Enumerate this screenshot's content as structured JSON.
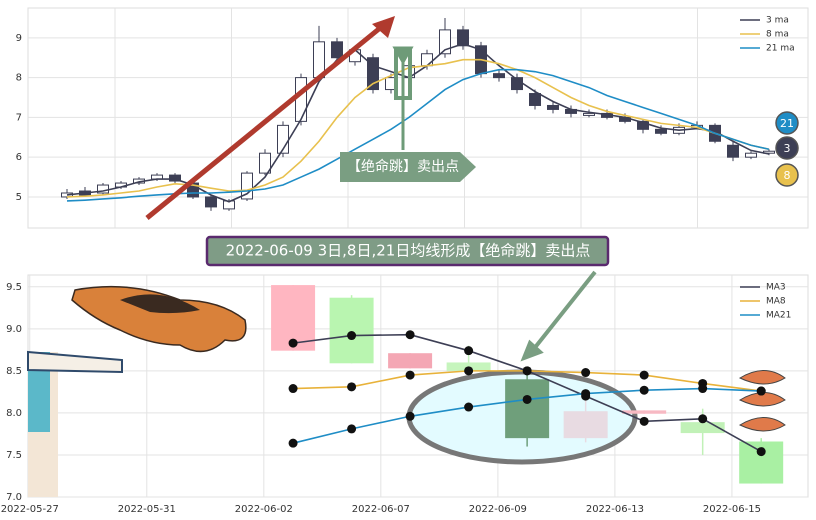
{
  "chart_data": [
    {
      "type": "candlestick",
      "open": [
        5.0,
        5.15,
        5.1,
        5.25,
        5.35,
        5.45,
        5.55,
        5.35,
        5.0,
        4.7,
        4.95,
        5.6,
        6.1,
        6.9,
        8.0,
        8.9,
        8.4,
        8.5,
        7.7,
        8.0,
        8.3,
        8.6,
        9.2,
        8.8,
        8.1,
        8.0,
        7.6,
        7.3,
        7.2,
        7.05,
        7.1,
        7.0,
        6.9,
        6.7,
        6.6,
        6.75,
        6.8,
        6.3,
        6.0,
        6.1
      ],
      "high": [
        5.2,
        5.25,
        5.35,
        5.4,
        5.5,
        5.6,
        5.6,
        5.4,
        5.05,
        4.95,
        5.65,
        6.2,
        6.9,
        8.1,
        9.3,
        9.0,
        8.8,
        8.6,
        8.1,
        8.4,
        8.7,
        9.5,
        9.3,
        8.9,
        8.2,
        8.1,
        7.7,
        7.4,
        7.3,
        7.2,
        7.2,
        7.1,
        6.95,
        6.8,
        6.85,
        6.9,
        6.85,
        6.4,
        6.15,
        6.2
      ],
      "low": [
        4.95,
        5.0,
        5.05,
        5.2,
        5.3,
        5.4,
        5.35,
        4.95,
        4.65,
        4.65,
        4.9,
        5.55,
        6.0,
        6.8,
        7.9,
        8.4,
        8.3,
        7.6,
        7.6,
        7.9,
        8.2,
        8.5,
        8.7,
        8.0,
        7.9,
        7.6,
        7.2,
        7.1,
        7.0,
        7.0,
        6.95,
        6.85,
        6.6,
        6.55,
        6.55,
        6.7,
        6.35,
        5.9,
        5.95,
        6.05
      ],
      "close": [
        5.1,
        5.05,
        5.3,
        5.35,
        5.45,
        5.55,
        5.4,
        5.0,
        4.75,
        4.9,
        5.6,
        6.1,
        6.8,
        8.0,
        8.9,
        8.5,
        8.7,
        7.7,
        8.0,
        8.3,
        8.6,
        9.2,
        8.8,
        8.1,
        8.0,
        7.7,
        7.3,
        7.2,
        7.1,
        7.1,
        7.0,
        6.9,
        6.7,
        6.6,
        6.75,
        6.8,
        6.4,
        6.0,
        6.1,
        6.15
      ],
      "up_color": "#ffffff",
      "down_color": "#3d3f55",
      "series": [
        {
          "name": "3 ma",
          "color": "#3d3f55",
          "values": [
            5.05,
            5.1,
            5.15,
            5.25,
            5.38,
            5.45,
            5.45,
            5.3,
            5.05,
            4.88,
            5.08,
            5.5,
            6.2,
            6.95,
            7.9,
            8.45,
            8.7,
            8.3,
            8.15,
            8.0,
            8.3,
            8.7,
            8.85,
            8.7,
            8.3,
            7.95,
            7.65,
            7.4,
            7.2,
            7.13,
            7.07,
            7.0,
            6.87,
            6.73,
            6.68,
            6.72,
            6.65,
            6.4,
            6.17,
            6.08
          ]
        },
        {
          "name": "8 ma",
          "color": "#e8c14e",
          "values": [
            5.0,
            5.02,
            5.05,
            5.1,
            5.15,
            5.25,
            5.33,
            5.3,
            5.22,
            5.15,
            5.17,
            5.3,
            5.5,
            5.9,
            6.4,
            7.0,
            7.5,
            7.85,
            8.05,
            8.25,
            8.3,
            8.35,
            8.45,
            8.45,
            8.35,
            8.2,
            8.0,
            7.75,
            7.5,
            7.3,
            7.15,
            7.05,
            6.95,
            6.85,
            6.8,
            6.75,
            6.6,
            6.45,
            6.3,
            6.2
          ]
        },
        {
          "name": "21 ma",
          "color": "#1f8dc6",
          "values": [
            4.9,
            4.92,
            4.95,
            4.98,
            5.02,
            5.05,
            5.08,
            5.1,
            5.1,
            5.12,
            5.15,
            5.2,
            5.3,
            5.5,
            5.7,
            5.95,
            6.2,
            6.45,
            6.7,
            7.0,
            7.35,
            7.7,
            7.95,
            8.1,
            8.2,
            8.2,
            8.15,
            8.05,
            7.9,
            7.75,
            7.55,
            7.4,
            7.25,
            7.1,
            6.95,
            6.8,
            6.6,
            6.45,
            6.3,
            6.2
          ]
        }
      ],
      "ylim": [
        4.22,
        9.75
      ],
      "yticks": [
        5,
        6,
        7,
        8,
        9
      ],
      "grid": true,
      "legend": "upper right",
      "annotation": "【绝命跳】卖出点",
      "end_badges": [
        "21",
        "3",
        "8"
      ]
    },
    {
      "type": "candlestick",
      "title": "2022-06-09 3日,8日,21日均线形成【绝命跳】卖出点",
      "x": [
        4.5,
        5.5,
        6.5,
        7.5,
        8.5,
        9.5,
        10.5,
        11.5,
        12.5
      ],
      "open": [
        8.74,
        8.59,
        8.53,
        8.5,
        8.4,
        7.7,
        7.99,
        7.76,
        7.66
      ],
      "high": [
        9.52,
        9.4,
        8.71,
        8.8,
        8.45,
        8.25,
        8.03,
        8.05,
        7.7
      ],
      "low": [
        8.74,
        8.59,
        8.53,
        8.5,
        7.6,
        7.65,
        7.99,
        7.5,
        7.16
      ],
      "close": [
        9.52,
        9.37,
        8.71,
        8.6,
        7.7,
        8.02,
        8.03,
        7.89,
        7.16
      ],
      "colors": [
        "#ffb6c1",
        "#b9f5b0",
        "#f4a7b4",
        "#c6f5bd",
        "#6f9f7b",
        "#e8dbe2",
        "#f7b9c3",
        "#c1f1b7",
        "#a9f0a3"
      ],
      "series": [
        {
          "name": "MA3",
          "color": "#3d3f55",
          "values": [
            8.83,
            8.92,
            8.93,
            8.74,
            8.5,
            8.2,
            7.9,
            7.93,
            7.54
          ]
        },
        {
          "name": "MA8",
          "color": "#e8b23a",
          "values": [
            8.29,
            8.31,
            8.45,
            8.5,
            8.5,
            8.48,
            8.45,
            8.35,
            8.26
          ]
        },
        {
          "name": "MA21",
          "color": "#1f8dc6",
          "values": [
            7.64,
            7.81,
            7.96,
            8.07,
            8.16,
            8.23,
            8.27,
            8.29,
            8.26
          ]
        }
      ],
      "xlim": [
        -0.03,
        13.3
      ],
      "xticks": [
        {
          "value": 0,
          "label": "2022-05-27"
        },
        {
          "value": 2,
          "label": "2022-05-31"
        },
        {
          "value": 4,
          "label": "2022-06-02"
        },
        {
          "value": 6,
          "label": "2022-06-07"
        },
        {
          "value": 8,
          "label": "2022-06-09"
        },
        {
          "value": 10,
          "label": "2022-06-13"
        },
        {
          "value": 12,
          "label": "2022-06-15"
        }
      ],
      "ylim": [
        7.0,
        9.64
      ],
      "yticks": [
        {
          "value": 7,
          "label": "7.0"
        },
        7.5,
        {
          "value": 8,
          "label": "8.0"
        },
        8.5,
        {
          "value": 9,
          "label": "9.0"
        },
        9.5
      ],
      "grid": true,
      "legend": "upper right"
    }
  ]
}
